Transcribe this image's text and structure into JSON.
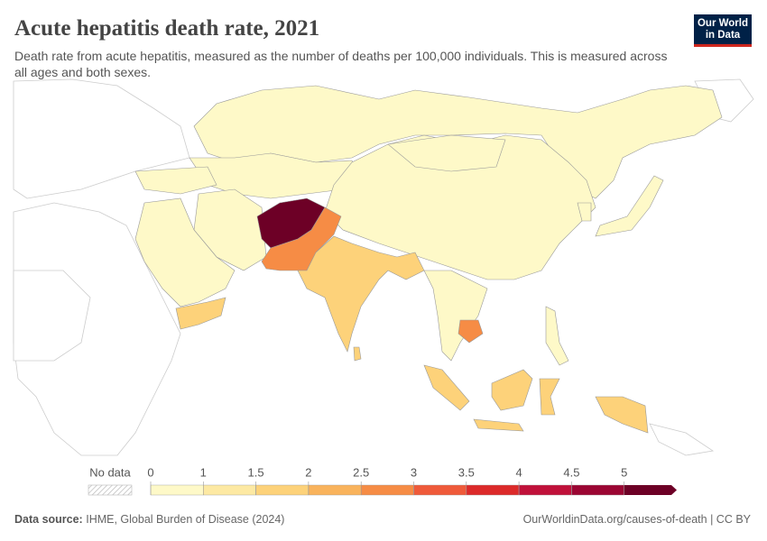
{
  "header": {
    "title": "Acute hepatitis death rate, 2021",
    "subtitle": "Death rate from acute hepatitis, measured as the number of deaths per 100,000 individuals. This is measured across all ages and both sexes.",
    "logo": [
      "Our World",
      "in Data"
    ]
  },
  "legend": {
    "no_data": "No data",
    "ticks": [
      0,
      1,
      1.5,
      2,
      2.5,
      3,
      3.5,
      4,
      4.5,
      5
    ],
    "colors": [
      "#fef9c8",
      "#fde9a3",
      "#fdd27a",
      "#f9b35c",
      "#f68c45",
      "#ef5a3a",
      "#dc2a2a",
      "#c0113a",
      "#9b0633",
      "#6d0026"
    ]
  },
  "footer": {
    "source_label": "Data source:",
    "source": "IHME, Global Burden of Disease (2024)",
    "url": "OurWorldinData.org/causes-of-death | CC BY"
  }
}
